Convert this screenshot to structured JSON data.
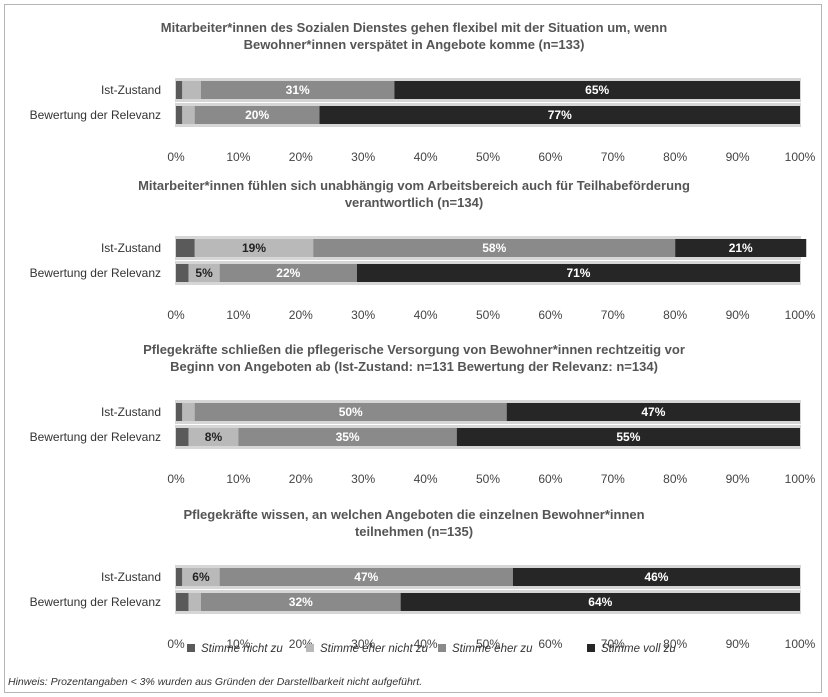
{
  "colors": {
    "Stimme nicht zu": "#5a5a5a",
    "Stimme eher nicht zu": "#b9b9b9",
    "Stimme eher zu": "#8a8a8a",
    "Stimme voll zu": "#262626",
    "track": "#d6d6d6"
  },
  "legend": [
    "Stimme nicht zu",
    "Stimme eher nicht zu",
    "Stimme eher zu",
    "Stimme voll zu"
  ],
  "note": "Hinweis: Prozentangaben < 3% wurden aus Gründen der Darstellbarkeit nicht aufgeführt.",
  "chart_data": [
    {
      "type": "bar",
      "orientation": "horizontal",
      "stacked": true,
      "title": [
        "Mitarbeiter*innen des Sozialen Dienstes gehen flexibel mit der Situation um, wenn",
        "Bewohner*innen verspätet in Angebote komme (n=133)"
      ],
      "categories": [
        "Ist-Zustand",
        "Bewertung der Relevanz"
      ],
      "xlim": [
        0,
        100
      ],
      "xticks": [
        "0%",
        "10%",
        "20%",
        "30%",
        "40%",
        "50%",
        "60%",
        "70%",
        "80%",
        "90%",
        "100%"
      ],
      "series": [
        {
          "name": "Stimme nicht zu",
          "values": [
            1,
            1
          ],
          "labels": [
            "",
            ""
          ]
        },
        {
          "name": "Stimme eher nicht zu",
          "values": [
            3,
            2
          ],
          "labels": [
            "",
            ""
          ]
        },
        {
          "name": "Stimme eher zu",
          "values": [
            31,
            20
          ],
          "labels": [
            "31%",
            "20%"
          ]
        },
        {
          "name": "Stimme voll zu",
          "values": [
            65,
            77
          ],
          "labels": [
            "65%",
            "77%"
          ]
        }
      ]
    },
    {
      "type": "bar",
      "orientation": "horizontal",
      "stacked": true,
      "title": [
        "Mitarbeiter*innen fühlen sich unabhängig vom Arbeitsbereich auch für Teilhabeförderung",
        "verantwortlich (n=134)"
      ],
      "categories": [
        "Ist-Zustand",
        "Bewertung der Relevanz"
      ],
      "xlim": [
        0,
        100
      ],
      "xticks": [
        "0%",
        "10%",
        "20%",
        "30%",
        "40%",
        "50%",
        "60%",
        "70%",
        "80%",
        "90%",
        "100%"
      ],
      "series": [
        {
          "name": "Stimme nicht zu",
          "values": [
            3,
            2
          ],
          "labels": [
            "",
            ""
          ]
        },
        {
          "name": "Stimme eher nicht zu",
          "values": [
            19,
            5
          ],
          "labels": [
            "19%",
            "5%"
          ]
        },
        {
          "name": "Stimme eher zu",
          "values": [
            58,
            22
          ],
          "labels": [
            "58%",
            "22%"
          ]
        },
        {
          "name": "Stimme voll zu",
          "values": [
            21,
            71
          ],
          "labels": [
            "21%",
            "71%"
          ]
        }
      ]
    },
    {
      "type": "bar",
      "orientation": "horizontal",
      "stacked": true,
      "title": [
        "Pflegekräfte schließen die pflegerische Versorgung von Bewohner*innen rechtzeitig vor",
        "Beginn von Angeboten ab (Ist-Zustand: n=131 Bewertung der Relevanz: n=134)"
      ],
      "categories": [
        "Ist-Zustand",
        "Bewertung der Relevanz"
      ],
      "xlim": [
        0,
        100
      ],
      "xticks": [
        "0%",
        "10%",
        "20%",
        "30%",
        "40%",
        "50%",
        "60%",
        "70%",
        "80%",
        "90%",
        "100%"
      ],
      "series": [
        {
          "name": "Stimme nicht zu",
          "values": [
            1,
            2
          ],
          "labels": [
            "",
            ""
          ]
        },
        {
          "name": "Stimme eher nicht zu",
          "values": [
            2,
            8
          ],
          "labels": [
            "",
            "8%"
          ]
        },
        {
          "name": "Stimme eher zu",
          "values": [
            50,
            35
          ],
          "labels": [
            "50%",
            "35%"
          ]
        },
        {
          "name": "Stimme voll zu",
          "values": [
            47,
            55
          ],
          "labels": [
            "47%",
            "55%"
          ]
        }
      ]
    },
    {
      "type": "bar",
      "orientation": "horizontal",
      "stacked": true,
      "title": [
        "Pflegekräfte wissen, an welchen Angeboten die einzelnen Bewohner*innen",
        "teilnehmen (n=135)"
      ],
      "categories": [
        "Ist-Zustand",
        "Bewertung der Relevanz"
      ],
      "xlim": [
        0,
        100
      ],
      "xticks": [
        "0%",
        "10%",
        "20%",
        "30%",
        "40%",
        "50%",
        "60%",
        "70%",
        "80%",
        "90%",
        "100%"
      ],
      "series": [
        {
          "name": "Stimme nicht zu",
          "values": [
            1,
            2
          ],
          "labels": [
            "",
            ""
          ]
        },
        {
          "name": "Stimme eher nicht zu",
          "values": [
            6,
            2
          ],
          "labels": [
            "6%",
            ""
          ]
        },
        {
          "name": "Stimme eher zu",
          "values": [
            47,
            32
          ],
          "labels": [
            "47%",
            "32%"
          ]
        },
        {
          "name": "Stimme voll zu",
          "values": [
            46,
            64
          ],
          "labels": [
            "46%",
            "64%"
          ]
        }
      ]
    }
  ]
}
